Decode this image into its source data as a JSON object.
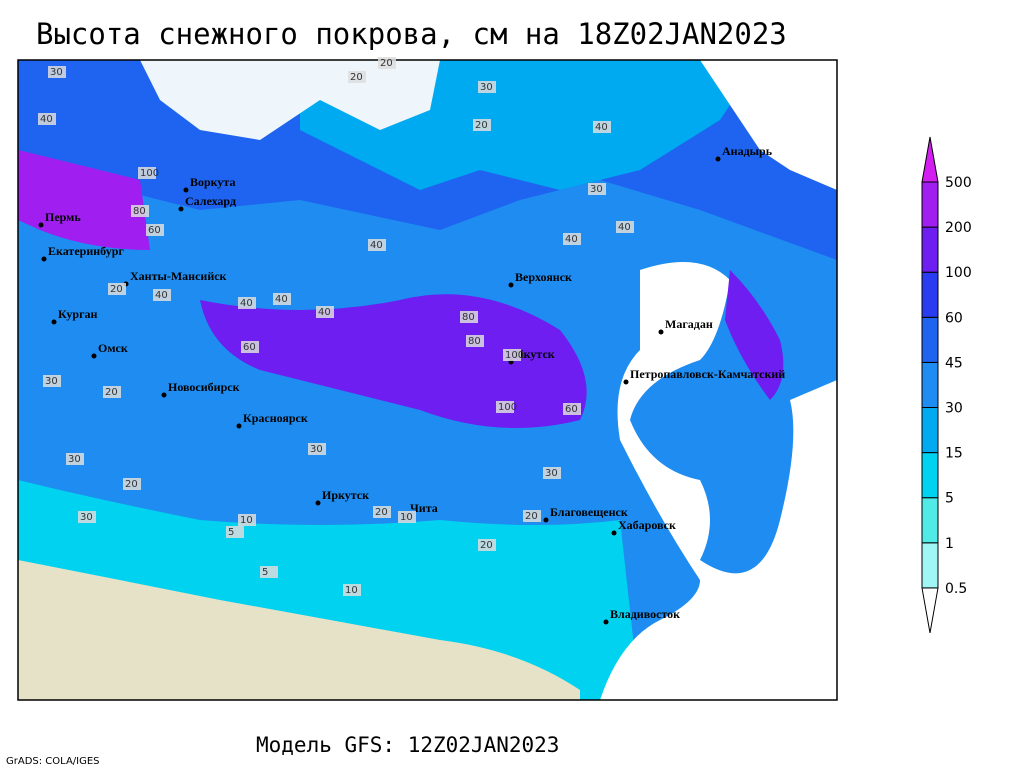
{
  "title": "Высота снежного покрова, см на 18Z02JAN2023",
  "subtitle": "Модель GFS: 12Z02JAN2023",
  "credit": "GrADS: COLA/IGES",
  "legend": {
    "levels": [
      0.5,
      1,
      5,
      15,
      30,
      45,
      60,
      100,
      200,
      500
    ],
    "colors": [
      "#ffffff",
      "#a0f5f5",
      "#50ebe6",
      "#00d2f0",
      "#00aaf0",
      "#1e8cf0",
      "#1e64f0",
      "#2a3cf0",
      "#6e1ef0",
      "#a01ef0",
      "#d21ef0"
    ]
  },
  "cities": [
    "Воркута",
    "Салехард",
    "Пермь",
    "Екатеринбург",
    "Ханты-Мансийск",
    "Курган",
    "Омск",
    "Новосибирск",
    "Красноярск",
    "Иркутск",
    "Чита",
    "Благовещенск",
    "Хабаровск",
    "Владивосток",
    "Якутск",
    "Верхоянск",
    "Магадан",
    "Петропавловск-Камчатский",
    "Анадырь"
  ],
  "contour_labels": [
    30,
    40,
    30,
    20,
    20,
    30,
    20,
    40,
    100,
    80,
    60,
    40,
    40,
    40,
    60,
    40,
    80,
    80,
    100,
    100,
    60,
    30,
    20,
    30,
    20,
    10,
    5,
    10,
    20,
    30,
    20,
    5,
    40,
    40,
    30,
    20,
    10,
    40,
    30,
    20
  ]
}
